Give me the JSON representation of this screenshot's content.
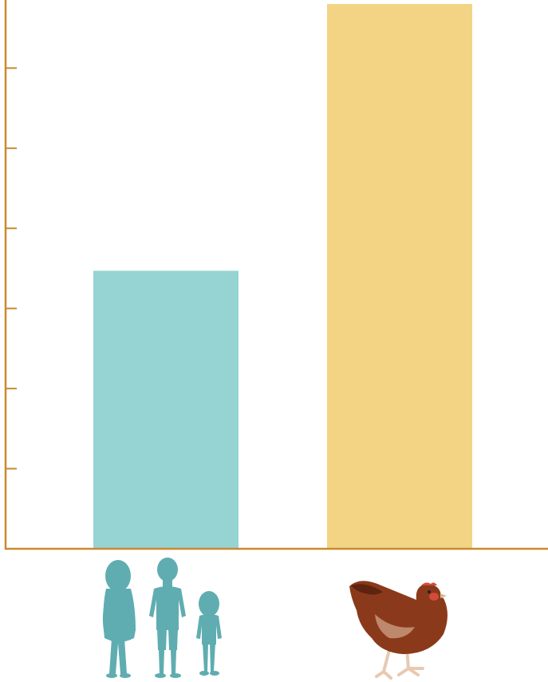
{
  "chart_data": {
    "type": "bar",
    "categories": [
      "people",
      "chicken"
    ],
    "category_icons": [
      "family-silhouette-icon",
      "hen-icon"
    ],
    "values": [
      3.47,
      6.8
    ],
    "ylim": [
      0,
      6.8
    ],
    "ytick_count": 6,
    "xlabel": "",
    "ylabel": "",
    "title": "",
    "grid": false,
    "colors": {
      "bars": [
        "#96d3d3",
        "#f2d484"
      ],
      "axis": "#c98a2e",
      "people": "#5fadb1",
      "hen_body": "#8a3a1a",
      "hen_dark": "#5e2410",
      "hen_comb": "#d44a3a",
      "hen_leg": "#e8c9b0"
    }
  }
}
